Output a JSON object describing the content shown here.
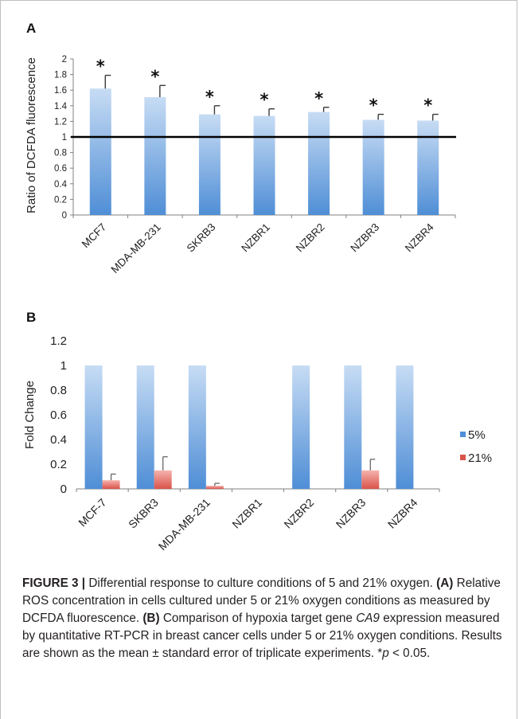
{
  "chart_data": [
    {
      "type": "bar",
      "panel": "A",
      "ylabel": "Ratio of DCFDA fluorescence",
      "ylim": [
        0,
        2
      ],
      "yticks": [
        "0",
        "0.2",
        "0.4",
        "0.6",
        "0.8",
        "1",
        "1.2",
        "1.4",
        "1.6",
        "1.8",
        "2"
      ],
      "categories": [
        "MCF7",
        "MDA-MB-231",
        "SKRB3",
        "NZBR1",
        "NZBR2",
        "NZBR3",
        "NZBR4"
      ],
      "series": [
        {
          "values": [
            1.62,
            1.51,
            1.29,
            1.27,
            1.32,
            1.22,
            1.21
          ],
          "errors": [
            0.17,
            0.15,
            0.11,
            0.09,
            0.06,
            0.07,
            0.08
          ],
          "significance": [
            "*",
            "*",
            "*",
            "*",
            "*",
            "*",
            "*"
          ]
        }
      ],
      "reference_line": 1,
      "grid": false
    },
    {
      "type": "bar",
      "panel": "B",
      "ylabel": "Fold Change",
      "ylim": [
        0,
        1.2
      ],
      "yticks": [
        "0",
        "0.2",
        "0.4",
        "0.6",
        "0.8",
        "1",
        "1.2"
      ],
      "categories": [
        "MCF-7",
        "SKBR3",
        "MDA-MB-231",
        "NZBR1",
        "NZBR2",
        "NZBR3",
        "NZBR4"
      ],
      "series": [
        {
          "name": "5%",
          "values": [
            1,
            1,
            1,
            null,
            1,
            1,
            1
          ],
          "errors": [
            0,
            0,
            0,
            0,
            0,
            0,
            0
          ]
        },
        {
          "name": "21%",
          "values": [
            0.07,
            0.15,
            0.025,
            null,
            null,
            0.15,
            null
          ],
          "errors": [
            0.05,
            0.11,
            0.02,
            0,
            0,
            0.09,
            0
          ]
        }
      ],
      "legend": "right",
      "grid": false
    }
  ],
  "colors": {
    "blue_light": "#c7dcf4",
    "blue_dark": "#4f8ed6",
    "red_light": "#f6b3ae",
    "red_dark": "#d9534a",
    "axis": "#808080"
  },
  "caption": {
    "figure_label": "FIGURE 3 |",
    "intro": " Differential response to culture conditions of 5 and 21% oxygen.",
    "a_label": "(A)",
    "a_text": " Relative ROS concentration in cells cultured under 5 or 21% oxygen conditions as measured by DCFDA fluorescence.",
    "b_label": "(B)",
    "b_text_1": " Comparison of hypoxia target gene ",
    "b_gene": "CA9",
    "b_text_2": " expression measured by quantitative RT-PCR in breast cancer cells under 5 or 21% oxygen conditions. Results are shown as the mean ± standard error of triplicate experiments. *",
    "p_symbol": "p",
    "p_rest": " < 0.05."
  }
}
